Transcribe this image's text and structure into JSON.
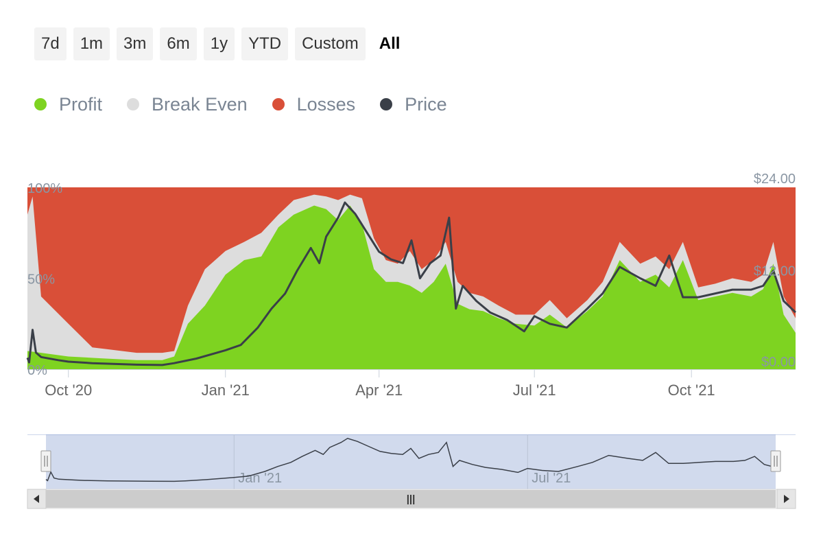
{
  "range_selector": {
    "buttons": [
      "7d",
      "1m",
      "3m",
      "6m",
      "1y",
      "YTD",
      "Custom",
      "All"
    ],
    "active": "All"
  },
  "legend": [
    {
      "label": "Profit",
      "color": "#7ed321"
    },
    {
      "label": "Break Even",
      "color": "#dddddd"
    },
    {
      "label": "Losses",
      "color": "#d94f38"
    },
    {
      "label": "Price",
      "color": "#3a3f48"
    }
  ],
  "chart_data": {
    "type": "area",
    "stacking": "percent",
    "x_start": "2020-09-07",
    "x_end": "2021-12-01",
    "x_ticks": [
      {
        "date": "2020-10-01",
        "label": "Oct '20"
      },
      {
        "date": "2021-01-01",
        "label": "Jan '21"
      },
      {
        "date": "2021-04-01",
        "label": "Apr '21"
      },
      {
        "date": "2021-07-01",
        "label": "Jul '21"
      },
      {
        "date": "2021-10-01",
        "label": "Oct '21"
      }
    ],
    "y_left": {
      "ticks": [
        "0%",
        "50%",
        "100%"
      ],
      "range": [
        0,
        100
      ]
    },
    "y_right": {
      "ticks": [
        "$0.00",
        "$12.00",
        "$24.00"
      ],
      "range": [
        0,
        24
      ]
    },
    "series": [
      {
        "name": "Profit",
        "unit": "%",
        "color": "#7ed321",
        "points": [
          [
            "2020-09-07",
            10
          ],
          [
            "2020-09-15",
            9
          ],
          [
            "2020-10-01",
            7
          ],
          [
            "2020-10-20",
            6
          ],
          [
            "2020-11-10",
            5
          ],
          [
            "2020-11-25",
            5
          ],
          [
            "2020-12-02",
            7
          ],
          [
            "2020-12-10",
            25
          ],
          [
            "2020-12-20",
            35
          ],
          [
            "2021-01-01",
            52
          ],
          [
            "2021-01-12",
            60
          ],
          [
            "2021-01-22",
            62
          ],
          [
            "2021-02-01",
            78
          ],
          [
            "2021-02-10",
            85
          ],
          [
            "2021-02-22",
            90
          ],
          [
            "2021-03-01",
            88
          ],
          [
            "2021-03-08",
            82
          ],
          [
            "2021-03-15",
            90
          ],
          [
            "2021-03-22",
            80
          ],
          [
            "2021-03-29",
            55
          ],
          [
            "2021-04-05",
            48
          ],
          [
            "2021-04-12",
            48
          ],
          [
            "2021-04-19",
            46
          ],
          [
            "2021-04-26",
            42
          ],
          [
            "2021-05-03",
            48
          ],
          [
            "2021-05-10",
            58
          ],
          [
            "2021-05-17",
            36
          ],
          [
            "2021-05-24",
            33
          ],
          [
            "2021-06-01",
            32
          ],
          [
            "2021-06-10",
            28
          ],
          [
            "2021-06-20",
            25
          ],
          [
            "2021-07-01",
            24
          ],
          [
            "2021-07-10",
            30
          ],
          [
            "2021-07-20",
            23
          ],
          [
            "2021-08-01",
            32
          ],
          [
            "2021-08-10",
            40
          ],
          [
            "2021-08-20",
            60
          ],
          [
            "2021-09-01",
            48
          ],
          [
            "2021-09-10",
            52
          ],
          [
            "2021-09-18",
            45
          ],
          [
            "2021-09-26",
            60
          ],
          [
            "2021-10-05",
            38
          ],
          [
            "2021-10-15",
            40
          ],
          [
            "2021-10-25",
            42
          ],
          [
            "2021-11-05",
            40
          ],
          [
            "2021-11-12",
            44
          ],
          [
            "2021-11-18",
            58
          ],
          [
            "2021-11-24",
            30
          ],
          [
            "2021-12-01",
            20
          ]
        ]
      },
      {
        "name": "Break Even",
        "unit": "%",
        "color": "#dddddd",
        "points": [
          [
            "2020-09-07",
            85
          ],
          [
            "2020-09-10",
            95
          ],
          [
            "2020-09-15",
            40
          ],
          [
            "2020-10-01",
            25
          ],
          [
            "2020-10-15",
            12
          ],
          [
            "2020-11-10",
            9
          ],
          [
            "2020-11-25",
            9
          ],
          [
            "2020-12-02",
            10
          ],
          [
            "2020-12-10",
            35
          ],
          [
            "2020-12-20",
            55
          ],
          [
            "2021-01-01",
            65
          ],
          [
            "2021-01-12",
            70
          ],
          [
            "2021-01-22",
            75
          ],
          [
            "2021-02-01",
            85
          ],
          [
            "2021-02-10",
            93
          ],
          [
            "2021-02-22",
            96
          ],
          [
            "2021-03-01",
            95
          ],
          [
            "2021-03-08",
            93
          ],
          [
            "2021-03-15",
            96
          ],
          [
            "2021-03-22",
            94
          ],
          [
            "2021-03-29",
            72
          ],
          [
            "2021-04-05",
            60
          ],
          [
            "2021-04-12",
            58
          ],
          [
            "2021-04-19",
            65
          ],
          [
            "2021-04-26",
            55
          ],
          [
            "2021-05-03",
            60
          ],
          [
            "2021-05-10",
            70
          ],
          [
            "2021-05-17",
            48
          ],
          [
            "2021-05-24",
            42
          ],
          [
            "2021-06-01",
            40
          ],
          [
            "2021-06-10",
            35
          ],
          [
            "2021-06-20",
            30
          ],
          [
            "2021-07-01",
            30
          ],
          [
            "2021-07-10",
            38
          ],
          [
            "2021-07-20",
            28
          ],
          [
            "2021-08-01",
            38
          ],
          [
            "2021-08-10",
            48
          ],
          [
            "2021-08-20",
            70
          ],
          [
            "2021-09-01",
            58
          ],
          [
            "2021-09-10",
            62
          ],
          [
            "2021-09-18",
            55
          ],
          [
            "2021-09-26",
            70
          ],
          [
            "2021-10-05",
            45
          ],
          [
            "2021-10-15",
            47
          ],
          [
            "2021-10-25",
            50
          ],
          [
            "2021-11-05",
            48
          ],
          [
            "2021-11-12",
            52
          ],
          [
            "2021-11-18",
            70
          ],
          [
            "2021-11-24",
            40
          ],
          [
            "2021-12-01",
            28
          ]
        ]
      },
      {
        "name": "Losses",
        "unit": "%",
        "color": "#d94f38",
        "points": [
          [
            "2020-09-07",
            100
          ],
          [
            "2021-12-01",
            100
          ]
        ]
      },
      {
        "name": "Price",
        "unit": "USD",
        "color": "#3a3f48",
        "points": [
          [
            "2020-09-07",
            1.5
          ],
          [
            "2020-09-08",
            0.9
          ],
          [
            "2020-09-10",
            5.2
          ],
          [
            "2020-09-12",
            2.2
          ],
          [
            "2020-09-15",
            1.6
          ],
          [
            "2020-09-25",
            1.2
          ],
          [
            "2020-10-01",
            1.0
          ],
          [
            "2020-10-15",
            0.8
          ],
          [
            "2020-11-10",
            0.6
          ],
          [
            "2020-11-25",
            0.55
          ],
          [
            "2020-12-02",
            0.8
          ],
          [
            "2020-12-15",
            1.4
          ],
          [
            "2021-01-01",
            2.5
          ],
          [
            "2021-01-10",
            3.2
          ],
          [
            "2021-01-20",
            5.5
          ],
          [
            "2021-01-28",
            8.0
          ],
          [
            "2021-02-05",
            10.0
          ],
          [
            "2021-02-12",
            13.0
          ],
          [
            "2021-02-20",
            16.0
          ],
          [
            "2021-02-25",
            14.0
          ],
          [
            "2021-03-01",
            17.5
          ],
          [
            "2021-03-08",
            20.0
          ],
          [
            "2021-03-12",
            22.0
          ],
          [
            "2021-03-18",
            20.5
          ],
          [
            "2021-03-25",
            18.0
          ],
          [
            "2021-04-01",
            15.5
          ],
          [
            "2021-04-08",
            14.5
          ],
          [
            "2021-04-15",
            14.0
          ],
          [
            "2021-04-20",
            17.0
          ],
          [
            "2021-04-25",
            12.0
          ],
          [
            "2021-05-01",
            14.0
          ],
          [
            "2021-05-07",
            15.0
          ],
          [
            "2021-05-12",
            20.0
          ],
          [
            "2021-05-16",
            8.0
          ],
          [
            "2021-05-20",
            11.0
          ],
          [
            "2021-05-28",
            9.0
          ],
          [
            "2021-06-05",
            7.5
          ],
          [
            "2021-06-15",
            6.5
          ],
          [
            "2021-06-25",
            5.0
          ],
          [
            "2021-07-01",
            7.0
          ],
          [
            "2021-07-10",
            6.0
          ],
          [
            "2021-07-20",
            5.5
          ],
          [
            "2021-08-01",
            8.0
          ],
          [
            "2021-08-10",
            10.0
          ],
          [
            "2021-08-20",
            13.5
          ],
          [
            "2021-09-01",
            12.0
          ],
          [
            "2021-09-10",
            11.0
          ],
          [
            "2021-09-18",
            15.0
          ],
          [
            "2021-09-26",
            9.5
          ],
          [
            "2021-10-05",
            9.5
          ],
          [
            "2021-10-15",
            10.0
          ],
          [
            "2021-10-25",
            10.5
          ],
          [
            "2021-11-05",
            10.5
          ],
          [
            "2021-11-12",
            11.0
          ],
          [
            "2021-11-18",
            13.0
          ],
          [
            "2021-11-24",
            9.0
          ],
          [
            "2021-12-01",
            7.5
          ]
        ]
      }
    ],
    "legend_position": "top-left",
    "grid": false
  },
  "navigator": {
    "labels": [
      "Jan '21",
      "Jul '21"
    ],
    "handle_glyph": "|||"
  }
}
